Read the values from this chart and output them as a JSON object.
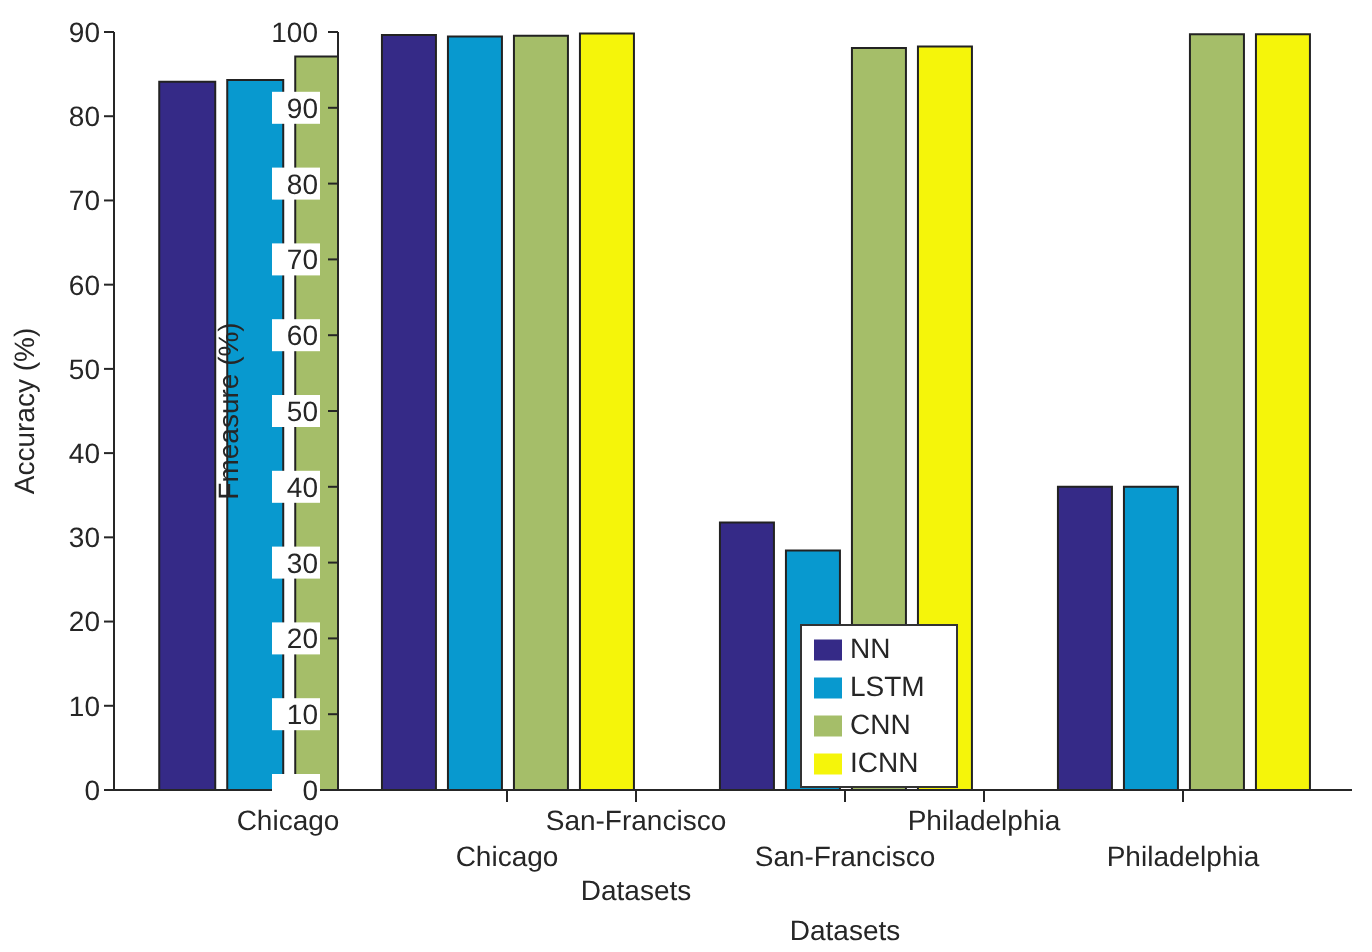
{
  "chart_data": [
    {
      "type": "bar",
      "xlabel": "Datasets",
      "ylabel": "Accuracy (%)",
      "categories": [
        "Chicago",
        "San-Francisco",
        "Philadelphia"
      ],
      "ylim": [
        0,
        90
      ],
      "yticks": [
        0,
        10,
        20,
        30,
        40,
        50,
        60,
        70,
        80,
        90
      ],
      "grid": false,
      "legend": false,
      "series": [
        {
          "color": "#352a87",
          "values": [
            84.1,
            null,
            null
          ]
        },
        {
          "color": "#0899cf",
          "values": [
            84.3,
            null,
            null
          ]
        },
        {
          "color": "#a5be69",
          "values": [
            87.1,
            null,
            null
          ]
        },
        {
          "color": "#f5f50a",
          "values": [
            null,
            null,
            null
          ]
        }
      ]
    },
    {
      "type": "bar",
      "xlabel": "Datasets",
      "ylabel": "Fmeasure (%)",
      "categories": [
        "Chicago",
        "San-Francisco",
        "Philadelphia"
      ],
      "ylim": [
        0,
        100
      ],
      "yticks": [
        0,
        10,
        20,
        30,
        40,
        50,
        60,
        70,
        80,
        90,
        100
      ],
      "grid": false,
      "legend": "bottom",
      "series": [
        {
          "name": "NN",
          "color": "#352a87",
          "values": [
            99.6,
            35.3,
            40.0
          ]
        },
        {
          "name": "LSTM",
          "color": "#0899cf",
          "values": [
            99.4,
            31.6,
            40.0
          ]
        },
        {
          "name": "CNN",
          "color": "#a5be69",
          "values": [
            99.5,
            97.9,
            99.7
          ]
        },
        {
          "name": "ICNN",
          "color": "#f5f50a",
          "values": [
            99.8,
            98.1,
            99.7
          ]
        }
      ]
    }
  ]
}
